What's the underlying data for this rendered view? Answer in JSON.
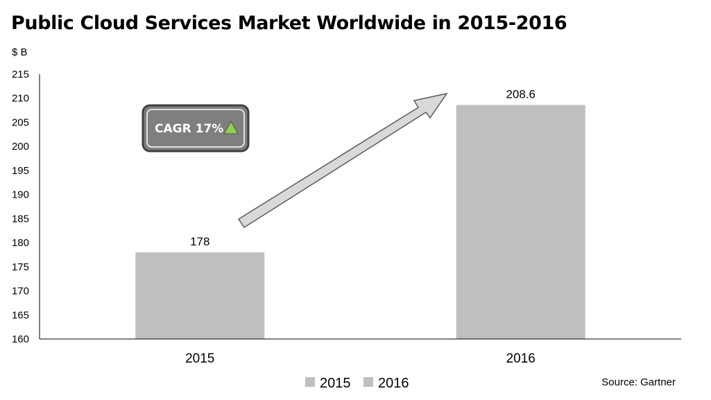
{
  "chart_data": {
    "type": "bar",
    "title": "Public Cloud Services Market Worldwide in 2015-2016",
    "ylabel": "$ B",
    "xlabel": "",
    "categories": [
      "2015",
      "2016"
    ],
    "values": [
      178,
      208.6
    ],
    "data_labels": [
      "178",
      "208.6"
    ],
    "ylim": [
      160,
      215
    ],
    "yticks": [
      160,
      165,
      170,
      175,
      180,
      185,
      190,
      195,
      200,
      205,
      210,
      215
    ],
    "grid": false,
    "legend": {
      "placement": "bottom",
      "entries": [
        "2015",
        "2016"
      ]
    },
    "annotation": {
      "text": "CAGR 17%",
      "icon": "up-triangle-icon",
      "arrow": "up-right-arrow"
    },
    "source": "Source: Gartner",
    "colors": {
      "bar": "#bfbfbf",
      "axis": "#000000",
      "arrow_fill": "#d9d9d9",
      "arrow_stroke": "#595959",
      "badge_fill": "#7f7f7f",
      "badge_border": "#404040",
      "triangle": "#92d050"
    }
  }
}
